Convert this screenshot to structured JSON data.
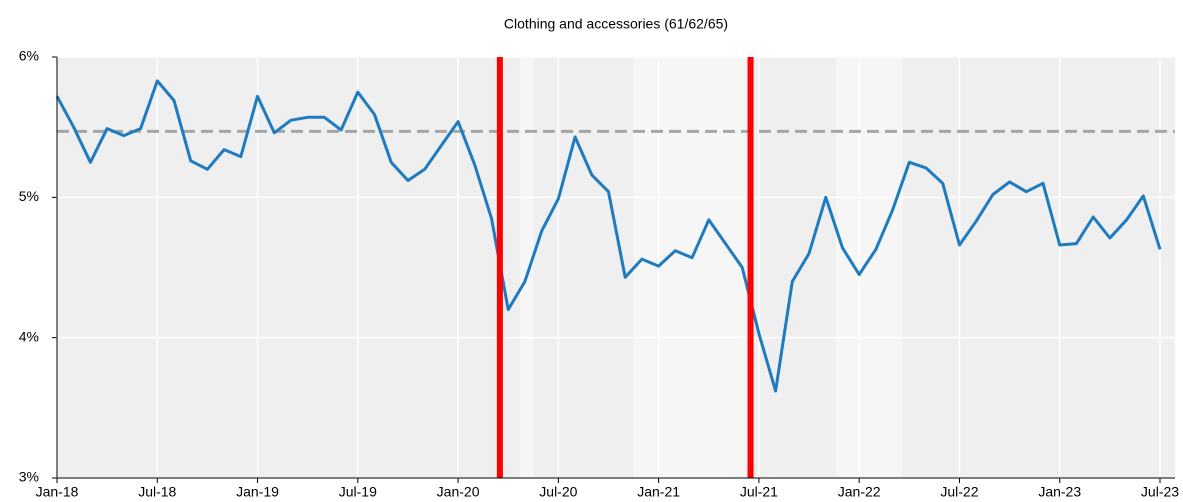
{
  "chart_data": {
    "type": "line",
    "title": "Clothing and accessories (61/62/65)",
    "categories": [
      "Jan-18",
      null,
      null,
      null,
      null,
      null,
      "Jul-18",
      null,
      null,
      null,
      null,
      null,
      "Jan-19",
      null,
      null,
      null,
      null,
      null,
      "Jul-19",
      null,
      null,
      null,
      null,
      null,
      "Jan-20",
      null,
      null,
      null,
      null,
      null,
      "Jul-20",
      null,
      null,
      null,
      null,
      null,
      "Jan-21",
      null,
      null,
      null,
      null,
      null,
      "Jul-21",
      null,
      null,
      null,
      null,
      null,
      "Jan-22",
      null,
      null,
      null,
      null,
      null,
      "Jul-22",
      null,
      null,
      null,
      null,
      null,
      "Jan-23",
      null,
      null,
      null,
      null,
      null,
      "Jul-23"
    ],
    "series": [
      {
        "color": "#1f7bbf",
        "values": [
          5.72,
          5.5,
          5.25,
          5.49,
          5.44,
          5.49,
          5.83,
          5.69,
          5.26,
          5.2,
          5.34,
          5.29,
          5.72,
          5.46,
          5.55,
          5.57,
          5.57,
          5.48,
          5.75,
          5.59,
          5.25,
          5.12,
          5.2,
          5.37,
          5.54,
          5.23,
          4.85,
          4.2,
          4.4,
          4.76,
          4.99,
          5.43,
          5.16,
          5.04,
          4.43,
          4.56,
          4.51,
          4.62,
          4.57,
          4.84,
          4.67,
          4.5,
          4.03,
          3.62,
          4.4,
          4.6,
          5.0,
          4.64,
          4.45,
          4.63,
          4.91,
          5.25,
          5.21,
          5.1,
          4.66,
          4.83,
          5.02,
          5.11,
          5.04,
          5.1,
          4.66,
          4.67,
          4.86,
          4.71,
          4.84,
          5.01,
          4.63
        ]
      }
    ],
    "ylim": [
      3,
      6
    ],
    "yticks": [
      {
        "value": 3,
        "label": "3%"
      },
      {
        "value": 4,
        "label": "4%"
      },
      {
        "value": 5,
        "label": "5%"
      },
      {
        "value": 6,
        "label": "6%"
      }
    ],
    "grid": true,
    "reference_line": {
      "value": 5.47,
      "color": "#a6a6a6"
    },
    "vlines": {
      "positions": [
        26.5,
        41.5
      ],
      "color": "#ff0000"
    },
    "shaded": [
      [
        27.7,
        28.5
      ],
      [
        34.5,
        41.2
      ],
      [
        46.6,
        50.6
      ]
    ]
  }
}
